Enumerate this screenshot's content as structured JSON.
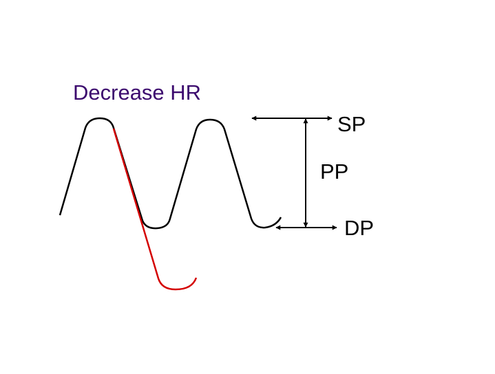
{
  "title": "Decrease HR",
  "labels": {
    "sp": "SP",
    "pp": "PP",
    "dp": "DP"
  }
}
